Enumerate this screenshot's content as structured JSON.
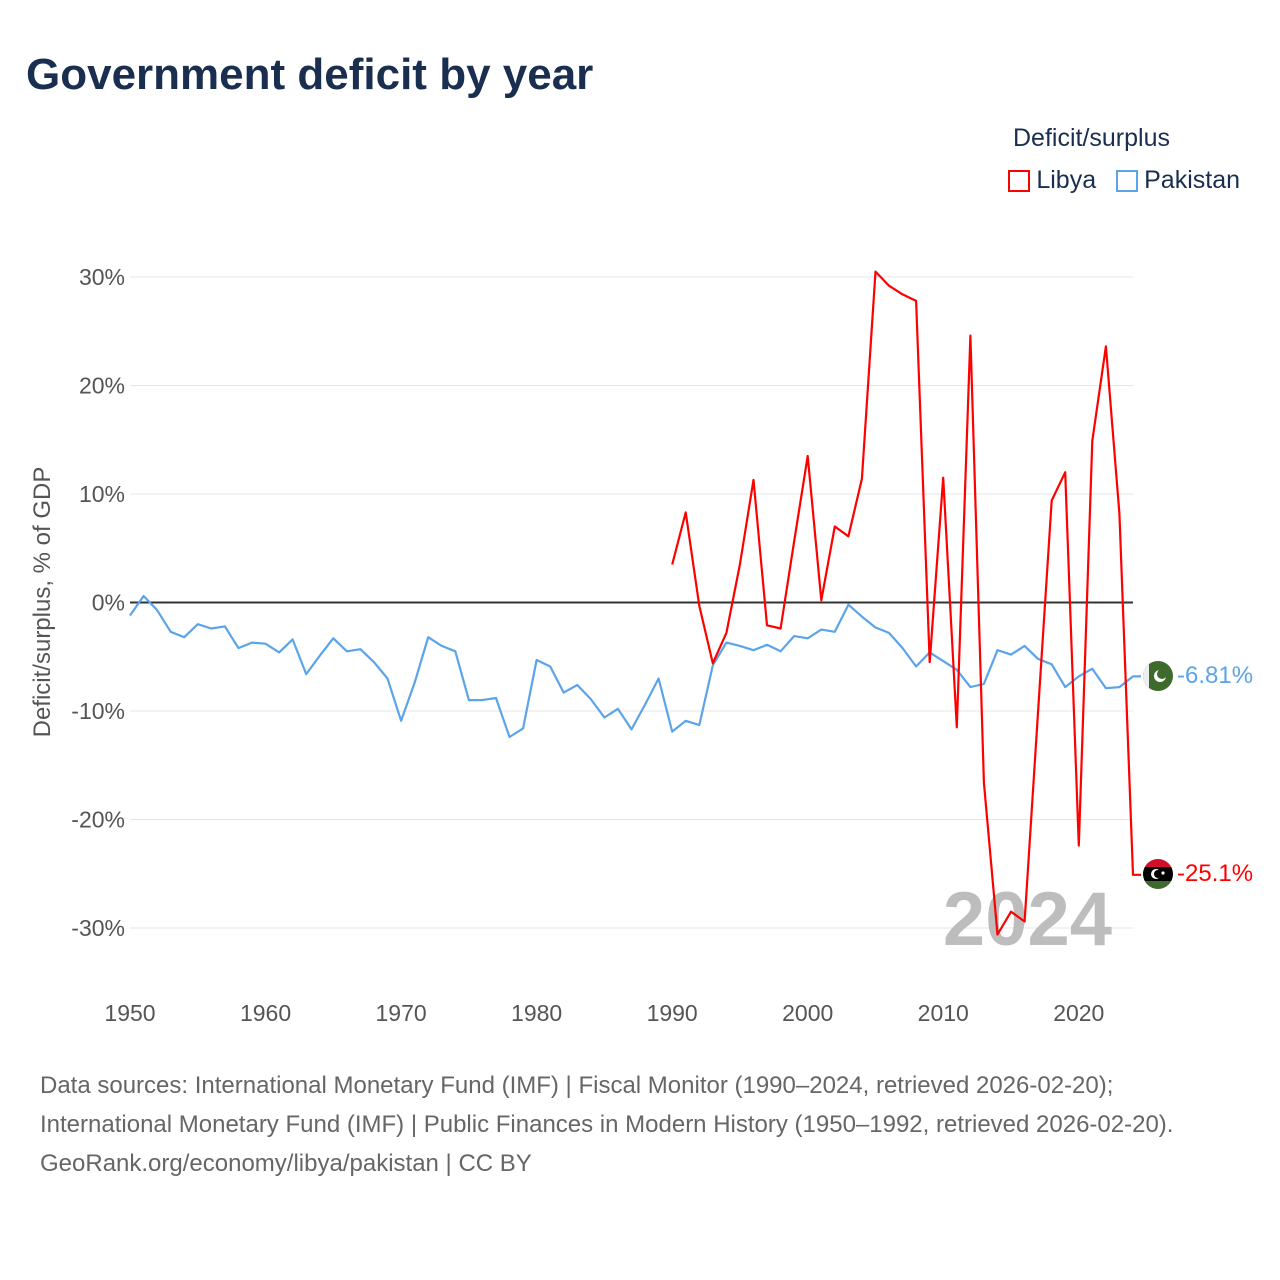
{
  "title": "Government deficit by year",
  "legend": {
    "title": "Deficit/surplus",
    "items": [
      {
        "label": "Libya",
        "color": "#ff0000"
      },
      {
        "label": "Pakistan",
        "color": "#5ba4ea"
      }
    ]
  },
  "year_watermark": "2024",
  "end_labels": {
    "pakistan": "-6.81%",
    "libya": "-25.1%"
  },
  "source_lines": [
    "Data sources: International Monetary Fund (IMF) | Fiscal Monitor (1990–2024, retrieved 2026-02-20); International Monetary Fund (IMF) | Public Finances in Modern History (1950–1992, retrieved 2026-02-20).",
    "GeoRank.org/economy/libya/pakistan | CC BY"
  ],
  "chart_data": {
    "type": "line",
    "title": "Government deficit by year",
    "xlabel": "",
    "ylabel": "Deficit/surplus, % of GDP",
    "xlim": [
      1950,
      2024
    ],
    "ylim": [
      -35,
      33
    ],
    "xticks": [
      1950,
      1960,
      1970,
      1980,
      1990,
      2000,
      2010,
      2020
    ],
    "xtick_labels": [
      "1950",
      "1960",
      "1970",
      "1980",
      "1990",
      "2000",
      "2010",
      "2020"
    ],
    "yticks": [
      30,
      20,
      10,
      0,
      -10,
      -20,
      -30
    ],
    "ytick_labels": [
      "30%",
      "20%",
      "10%",
      "0%",
      "-10%",
      "-20%",
      "-30%"
    ],
    "grid": true,
    "legend_position": "top-right",
    "series": [
      {
        "name": "Libya",
        "color": "#ff0000",
        "start_year": 1990,
        "values": [
          3.5,
          8.3,
          -0.3,
          -5.6,
          -2.8,
          3.5,
          11.3,
          -2.1,
          -2.4,
          5.6,
          13.5,
          0.2,
          7.0,
          6.1,
          11.4,
          30.5,
          29.2,
          28.4,
          27.8,
          -5.5,
          11.5,
          -11.5,
          24.6,
          -16.6,
          -30.6,
          -28.5,
          -29.4,
          -10.0,
          9.4,
          12.0,
          -22.4,
          14.9,
          23.6,
          8.2,
          -25.1
        ]
      },
      {
        "name": "Pakistan",
        "color": "#5ba4ea",
        "start_year": 1950,
        "values": [
          -1.2,
          0.6,
          -0.7,
          -2.7,
          -3.2,
          -2.0,
          -2.4,
          -2.2,
          -4.2,
          -3.7,
          -3.8,
          -4.6,
          -3.4,
          -6.6,
          -4.9,
          -3.3,
          -4.5,
          -4.3,
          -5.5,
          -7.0,
          -10.9,
          -7.4,
          -3.2,
          -4.0,
          -4.5,
          -9.0,
          -9.0,
          -8.8,
          -12.4,
          -11.6,
          -5.3,
          -5.9,
          -8.3,
          -7.6,
          -8.9,
          -10.6,
          -9.8,
          -11.7,
          -9.4,
          -7.0,
          -11.9,
          -10.9,
          -11.3,
          -5.8,
          -3.7,
          -4.0,
          -4.4,
          -3.9,
          -4.5,
          -3.1,
          -3.3,
          -2.5,
          -2.7,
          -0.2,
          -1.3,
          -2.3,
          -2.8,
          -4.2,
          -5.9,
          -4.6,
          -5.4,
          -6.2,
          -7.8,
          -7.5,
          -4.4,
          -4.8,
          -4.0,
          -5.2,
          -5.7,
          -7.8,
          -6.8,
          -6.1,
          -7.9,
          -7.8,
          -6.81
        ]
      }
    ]
  }
}
